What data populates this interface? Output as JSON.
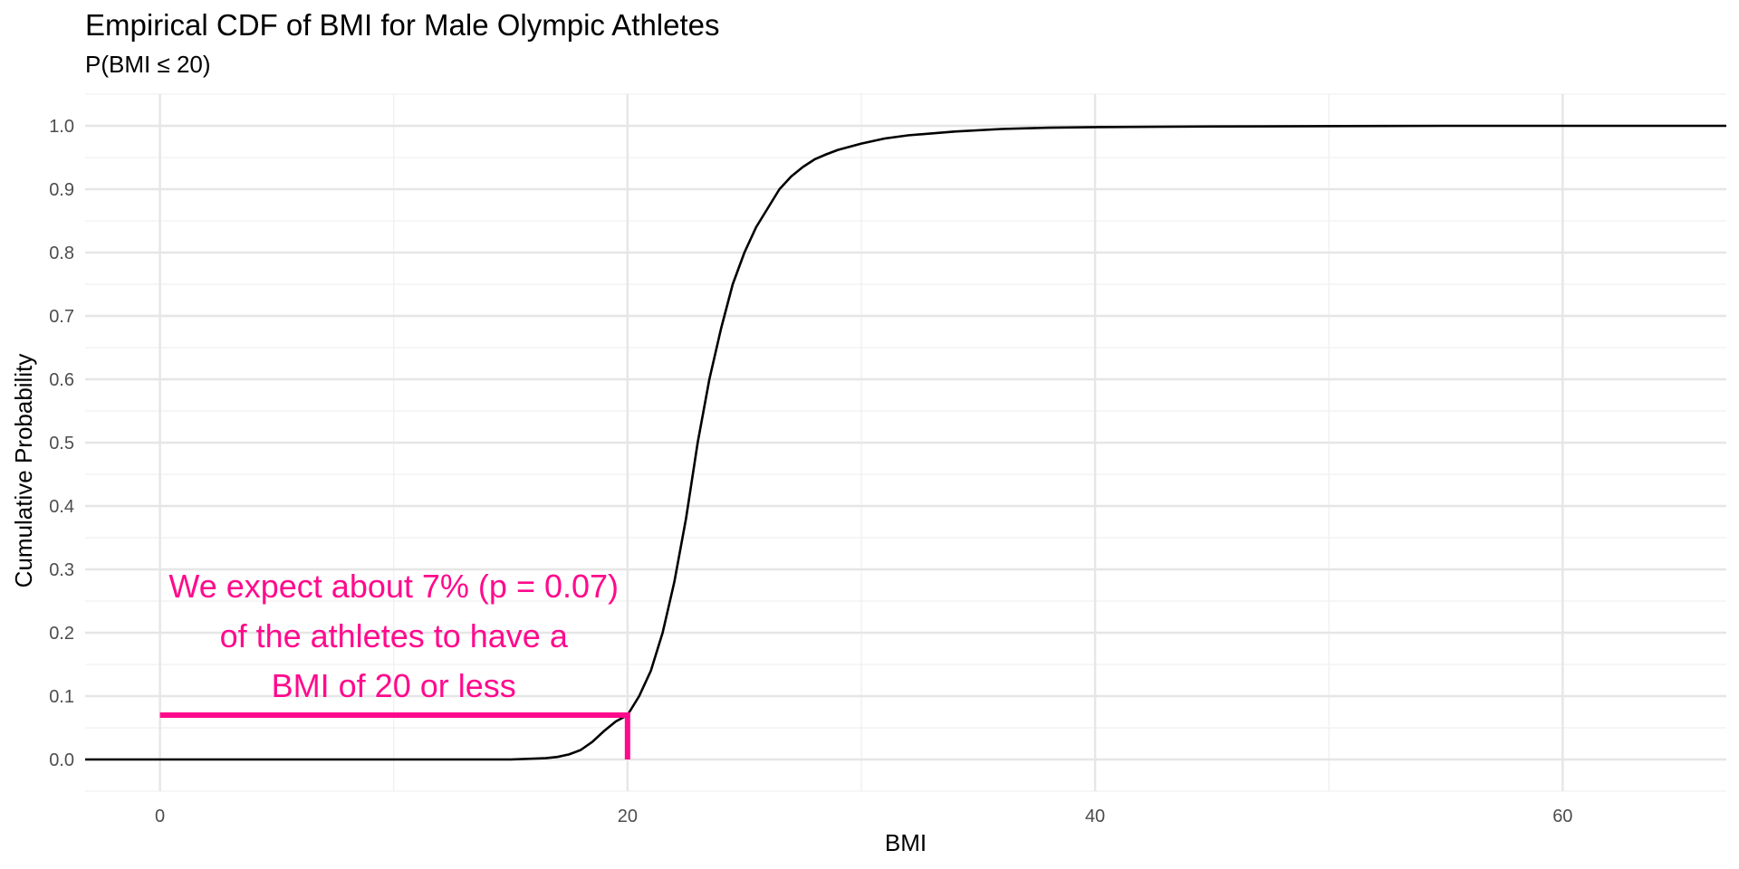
{
  "chart_data": {
    "type": "line",
    "title": "Empirical CDF of BMI for Male Olympic Athletes",
    "subtitle": "P(BMI ≤ 20)",
    "xlabel": "BMI",
    "ylabel": "Cumulative Probability",
    "xlim": [
      -3.2,
      67.0
    ],
    "ylim": [
      -0.05,
      1.05
    ],
    "x_ticks": [
      0,
      20,
      40,
      60
    ],
    "y_ticks": [
      0.0,
      0.1,
      0.2,
      0.3,
      0.4,
      0.5,
      0.6,
      0.7,
      0.8,
      0.9,
      1.0
    ],
    "y_tick_labels": [
      "0.0",
      "0.1",
      "0.2",
      "0.3",
      "0.4",
      "0.5",
      "0.6",
      "0.7",
      "0.8",
      "0.9",
      "1.0"
    ],
    "x_tick_labels": [
      "0",
      "20",
      "40",
      "60"
    ],
    "grid": true,
    "series": [
      {
        "color": "#000000",
        "x": [
          -3.2,
          12.0,
          15.0,
          16.5,
          17.0,
          17.5,
          18.0,
          18.5,
          19.0,
          19.5,
          20.0,
          20.5,
          21.0,
          21.5,
          22.0,
          22.5,
          23.0,
          23.5,
          24.0,
          24.5,
          25.0,
          25.5,
          26.0,
          26.5,
          27.0,
          27.5,
          28.0,
          28.5,
          29.0,
          30.0,
          31.0,
          32.0,
          34.0,
          36.0,
          38.0,
          40.0,
          45.0,
          55.0,
          67.0
        ],
        "y": [
          0.0,
          0.0,
          0.0,
          0.002,
          0.004,
          0.008,
          0.015,
          0.028,
          0.045,
          0.06,
          0.07,
          0.1,
          0.14,
          0.2,
          0.28,
          0.38,
          0.5,
          0.6,
          0.68,
          0.75,
          0.8,
          0.84,
          0.87,
          0.9,
          0.92,
          0.935,
          0.947,
          0.955,
          0.962,
          0.972,
          0.98,
          0.985,
          0.991,
          0.995,
          0.997,
          0.998,
          0.999,
          1.0,
          1.0
        ]
      }
    ],
    "highlight": {
      "color": "#ff0a8c",
      "x_from": 0,
      "x_at": 20,
      "p": 0.07
    },
    "annotation": {
      "lines": [
        "We expect about 7% (p = 0.07)",
        "of the athletes to have a",
        "BMI of 20 or less"
      ],
      "x": 10,
      "y": 0.27
    }
  }
}
